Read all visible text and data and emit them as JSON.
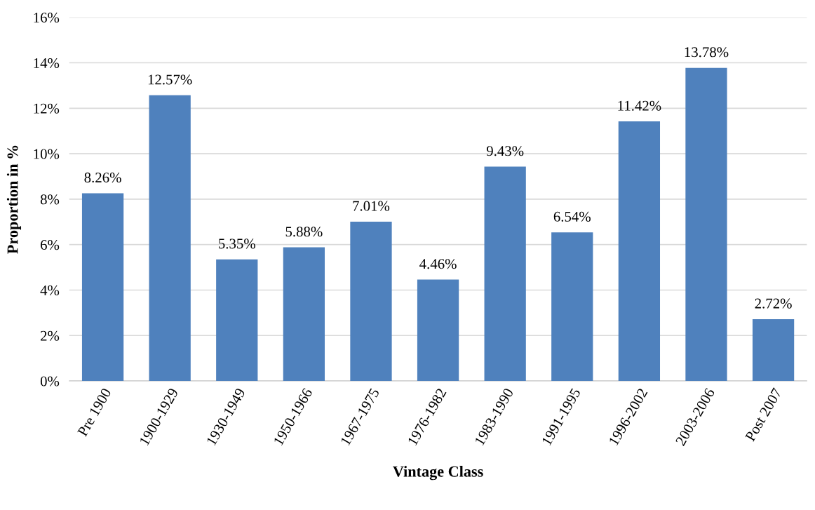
{
  "chart_data": {
    "type": "bar",
    "xlabel": "Vintage Class",
    "ylabel": "Proportion in %",
    "categories": [
      "Pre 1900",
      "1900-1929",
      "1930-1949",
      "1950-1966",
      "1967-1975",
      "1976-1982",
      "1983-1990",
      "1991-1995",
      "1996-2002",
      "2003-2006",
      "Post 2007"
    ],
    "values": [
      8.26,
      12.57,
      5.35,
      5.88,
      7.01,
      4.46,
      9.43,
      6.54,
      11.42,
      13.78,
      2.72
    ],
    "value_labels": [
      "8.26%",
      "12.57%",
      "5.35%",
      "5.88%",
      "7.01%",
      "4.46%",
      "9.43%",
      "6.54%",
      "11.42%",
      "13.78%",
      "2.72%"
    ],
    "color": "#4f81bd",
    "ylim": [
      0,
      16
    ],
    "yticks": [
      {
        "value": 0,
        "label": "0%"
      },
      {
        "value": 2,
        "label": "2%"
      },
      {
        "value": 4,
        "label": "4%"
      },
      {
        "value": 6,
        "label": "6%"
      },
      {
        "value": 8,
        "label": "8%"
      },
      {
        "value": 10,
        "label": "10%"
      },
      {
        "value": 12,
        "label": "12%"
      },
      {
        "value": 14,
        "label": "14%"
      },
      {
        "value": 16,
        "label": "16%"
      }
    ],
    "grid": "y"
  }
}
